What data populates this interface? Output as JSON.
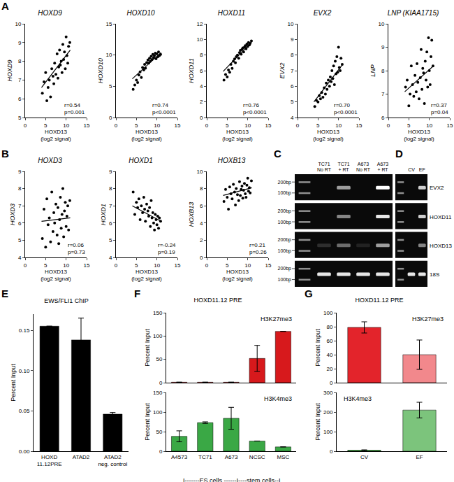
{
  "panel_labels": [
    "A",
    "B",
    "C",
    "D",
    "E",
    "F",
    "G"
  ],
  "chart_data": [
    {
      "type": "scatter",
      "title": "HOXD9",
      "xlabel": "HOXD13\n(log2 signal)",
      "ylabel": "HOXD9",
      "xlim": [
        0,
        15
      ],
      "xticks": [
        0,
        5,
        10,
        15
      ],
      "ylim": [
        5,
        10
      ],
      "yticks": [
        5,
        6,
        7,
        8,
        9,
        10
      ],
      "grid": false,
      "annotations": [
        "r=0.54\np=0.001"
      ],
      "series": [
        {
          "type": "scatter",
          "marker": "circle",
          "color": "#000000",
          "x": [
            4.2,
            4.6,
            5.0,
            5.3,
            5.6,
            5.9,
            6.2,
            6.5,
            6.8,
            7.0,
            7.2,
            7.5,
            7.8,
            8.0,
            8.2,
            8.4,
            8.6,
            8.8,
            9.0,
            9.2,
            9.4,
            9.6,
            9.8,
            10.0,
            10.2,
            10.4,
            10.6,
            10.9
          ],
          "values": [
            6.3,
            6.9,
            7.4,
            5.9,
            6.6,
            7.0,
            6.1,
            7.6,
            7.2,
            6.8,
            7.9,
            7.3,
            8.4,
            7.1,
            7.7,
            8.6,
            7.8,
            8.0,
            7.4,
            8.9,
            8.1,
            8.5,
            7.6,
            9.3,
            8.3,
            7.9,
            8.8,
            9.0
          ]
        },
        {
          "type": "line",
          "line_style": "solid",
          "color": "#000000",
          "x": [
            4,
            11
          ],
          "values": [
            6.6,
            8.6
          ]
        }
      ]
    },
    {
      "type": "scatter",
      "title": "HOXD10",
      "xlabel": "HOXD13\n(log2 signal)",
      "ylabel": "HOXD10",
      "xlim": [
        0,
        15
      ],
      "xticks": [
        0,
        5,
        10,
        15
      ],
      "ylim": [
        0,
        15
      ],
      "yticks": [
        0,
        5,
        10,
        15
      ],
      "grid": false,
      "annotations": [
        "r=0.74\np<0.0001"
      ],
      "series": [
        {
          "type": "scatter",
          "marker": "circle",
          "color": "#000000",
          "x": [
            4.2,
            4.6,
            5.0,
            5.3,
            5.6,
            5.9,
            6.2,
            6.5,
            6.8,
            7.0,
            7.2,
            7.5,
            7.8,
            8.0,
            8.2,
            8.4,
            8.6,
            8.8,
            9.0,
            9.2,
            9.4,
            9.6,
            9.8,
            10.0,
            10.2,
            10.4,
            10.6,
            10.9
          ],
          "values": [
            4.5,
            5.2,
            6.0,
            5.6,
            6.8,
            7.3,
            6.4,
            8.0,
            7.6,
            8.5,
            7.9,
            8.8,
            9.2,
            8.7,
            9.5,
            9.0,
            9.8,
            9.3,
            10.1,
            9.6,
            9.9,
            10.3,
            9.4,
            10.2,
            9.7,
            10.5,
            9.9,
            10.1
          ]
        },
        {
          "type": "line",
          "line_style": "solid",
          "color": "#000000",
          "x": [
            4,
            11
          ],
          "values": [
            6.2,
            10.4
          ]
        }
      ]
    },
    {
      "type": "scatter",
      "title": "HOXD11",
      "xlabel": "HOXD13\n(log2 signal)",
      "ylabel": "HOXD11",
      "xlim": [
        0,
        15
      ],
      "xticks": [
        0,
        5,
        10,
        15
      ],
      "ylim": [
        0,
        12
      ],
      "yticks": [
        0,
        2,
        4,
        6,
        8,
        10,
        12
      ],
      "grid": false,
      "annotations": [
        "r=0.76\np<0.0001"
      ],
      "series": [
        {
          "type": "scatter",
          "marker": "circle",
          "color": "#000000",
          "x": [
            4.2,
            4.6,
            5.0,
            5.3,
            5.6,
            5.9,
            6.2,
            6.5,
            6.8,
            7.0,
            7.2,
            7.5,
            7.8,
            8.0,
            8.2,
            8.4,
            8.6,
            8.8,
            9.0,
            9.2,
            9.4,
            9.6,
            9.8,
            10.0,
            10.2,
            10.4,
            10.6,
            10.9
          ],
          "values": [
            4.8,
            5.5,
            5.2,
            6.1,
            5.8,
            6.8,
            6.3,
            7.2,
            7.5,
            7.0,
            7.8,
            8.0,
            7.6,
            8.3,
            8.6,
            8.1,
            8.7,
            8.9,
            8.4,
            9.0,
            9.2,
            8.8,
            9.4,
            9.1,
            9.6,
            9.3,
            9.5,
            9.8
          ]
        },
        {
          "type": "line",
          "line_style": "solid",
          "color": "#000000",
          "x": [
            4,
            11
          ],
          "values": [
            5.9,
            9.7
          ]
        }
      ]
    },
    {
      "type": "scatter",
      "title": "EVX2",
      "xlabel": "HOXD13\n(log2 signal)",
      "ylabel": "EVX2",
      "xlim": [
        0,
        15
      ],
      "xticks": [
        0,
        5,
        10,
        15
      ],
      "ylim": [
        4,
        10
      ],
      "yticks": [
        4,
        5,
        6,
        7,
        8,
        9,
        10
      ],
      "grid": false,
      "annotations": [
        "r=0.70\np<0.0001"
      ],
      "series": [
        {
          "type": "scatter",
          "marker": "circle",
          "color": "#000000",
          "x": [
            4.2,
            4.6,
            5.0,
            5.3,
            5.6,
            5.9,
            6.2,
            6.5,
            6.8,
            7.0,
            7.2,
            7.5,
            7.8,
            8.0,
            8.2,
            8.4,
            8.6,
            8.8,
            9.0,
            9.2,
            9.4,
            9.6,
            9.8,
            10.0,
            10.2,
            10.4,
            10.6,
            10.9
          ],
          "values": [
            4.7,
            5.1,
            5.0,
            5.4,
            5.2,
            5.6,
            5.3,
            5.9,
            5.5,
            6.2,
            5.8,
            6.4,
            6.0,
            6.6,
            6.3,
            7.0,
            6.5,
            7.3,
            6.1,
            7.6,
            6.8,
            7.9,
            6.9,
            8.5,
            7.2,
            7.0,
            7.8,
            7.4
          ]
        },
        {
          "type": "line",
          "line_style": "solid",
          "color": "#000000",
          "x": [
            4,
            11
          ],
          "values": [
            5.0,
            7.4
          ]
        }
      ]
    },
    {
      "type": "scatter",
      "title": "LNP (KIAA1715)",
      "xlabel": "HOXD13\n(log2 signal)",
      "ylabel": "LNP",
      "xlim": [
        0,
        15
      ],
      "xticks": [
        0,
        5,
        10,
        15
      ],
      "ylim": [
        6,
        10
      ],
      "yticks": [
        6,
        7,
        8,
        9,
        10
      ],
      "grid": false,
      "annotations": [
        "r=0.37\np=0.04"
      ],
      "series": [
        {
          "type": "scatter",
          "marker": "circle",
          "color": "#000000",
          "x": [
            4.2,
            4.6,
            5.0,
            5.3,
            5.6,
            5.9,
            6.2,
            6.5,
            6.8,
            7.0,
            7.2,
            7.5,
            7.8,
            8.0,
            8.2,
            8.4,
            8.6,
            8.8,
            9.0,
            9.2,
            9.4,
            9.6,
            9.8,
            10.0,
            10.2,
            10.4,
            10.6,
            10.9
          ],
          "values": [
            7.3,
            7.6,
            6.5,
            7.0,
            8.2,
            7.4,
            6.9,
            7.8,
            7.1,
            8.3,
            7.5,
            6.8,
            7.7,
            8.9,
            7.2,
            8.1,
            7.9,
            6.6,
            8.4,
            7.6,
            8.8,
            7.3,
            9.4,
            8.0,
            7.4,
            8.6,
            9.3,
            8.2
          ]
        },
        {
          "type": "line",
          "line_style": "solid",
          "color": "#000000",
          "x": [
            4,
            11
          ],
          "values": [
            7.1,
            8.2
          ]
        }
      ]
    },
    {
      "type": "scatter",
      "title": "HOXD3",
      "xlabel": "HOXD13\n(log2 signal)",
      "ylabel": "HOXD3",
      "xlim": [
        0,
        15
      ],
      "xticks": [
        0,
        5,
        10,
        15
      ],
      "ylim": [
        4,
        9
      ],
      "yticks": [
        4,
        5,
        6,
        7,
        8,
        9
      ],
      "grid": false,
      "annotations": [
        "r=0.06\np=0.73"
      ],
      "series": [
        {
          "type": "scatter",
          "marker": "circle",
          "color": "#000000",
          "x": [
            4.2,
            4.6,
            5.0,
            5.3,
            5.6,
            5.9,
            6.2,
            6.5,
            6.8,
            7.0,
            7.2,
            7.5,
            7.8,
            8.0,
            8.2,
            8.4,
            8.6,
            8.8,
            9.0,
            9.2,
            9.4,
            9.6,
            9.8,
            10.0,
            10.2,
            10.4,
            10.6,
            10.9
          ],
          "values": [
            5.1,
            6.8,
            4.6,
            7.4,
            5.9,
            6.3,
            4.9,
            7.8,
            5.5,
            6.6,
            6.0,
            7.1,
            5.3,
            6.9,
            4.8,
            6.2,
            7.5,
            5.7,
            6.5,
            8.0,
            5.2,
            6.7,
            7.2,
            5.8,
            6.4,
            7.0,
            5.6,
            7.3
          ]
        },
        {
          "type": "line",
          "line_style": "solid",
          "color": "#000000",
          "x": [
            4,
            11
          ],
          "values": [
            6.1,
            6.3
          ]
        }
      ]
    },
    {
      "type": "scatter",
      "title": "HOXD1",
      "xlabel": "HOXD13\n(log2 signal)",
      "ylabel": "HOXD1",
      "xlim": [
        0,
        15
      ],
      "xticks": [
        0,
        5,
        10,
        15
      ],
      "ylim": [
        4,
        9
      ],
      "yticks": [
        4,
        5,
        6,
        7,
        8,
        9
      ],
      "grid": false,
      "annotations": [
        "r=-0.24\np=0.19"
      ],
      "series": [
        {
          "type": "scatter",
          "marker": "circle",
          "color": "#000000",
          "x": [
            4.2,
            4.6,
            5.0,
            5.3,
            5.6,
            5.9,
            6.2,
            6.5,
            6.8,
            7.0,
            7.2,
            7.5,
            7.8,
            8.0,
            8.2,
            8.4,
            8.6,
            8.8,
            9.0,
            9.2,
            9.4,
            9.6,
            9.8,
            10.0,
            10.2,
            10.4,
            10.6,
            10.9
          ],
          "values": [
            7.8,
            6.5,
            7.2,
            6.9,
            7.4,
            6.2,
            7.0,
            6.6,
            7.5,
            6.8,
            6.1,
            7.1,
            6.7,
            6.4,
            6.9,
            5.8,
            7.3,
            6.3,
            6.6,
            6.0,
            5.6,
            6.5,
            6.2,
            5.9,
            6.4,
            5.7,
            6.3,
            6.1
          ]
        },
        {
          "type": "line",
          "line_style": "solid",
          "color": "#000000",
          "x": [
            4,
            11
          ],
          "values": [
            7.0,
            6.1
          ]
        }
      ]
    },
    {
      "type": "scatter",
      "title": "HOXB13",
      "xlabel": "HOXD13\n(log2 signal)",
      "ylabel": "HOXB13",
      "xlim": [
        0,
        15
      ],
      "xticks": [
        0,
        5,
        10,
        15
      ],
      "ylim": [
        0,
        10
      ],
      "yticks": [
        0,
        2,
        4,
        6,
        8,
        10
      ],
      "grid": false,
      "annotations": [
        "r=0.21\np=0.26"
      ],
      "series": [
        {
          "type": "scatter",
          "marker": "circle",
          "color": "#000000",
          "x": [
            4.2,
            4.6,
            5.0,
            5.3,
            5.6,
            5.9,
            6.2,
            6.5,
            6.8,
            7.0,
            7.2,
            7.5,
            7.8,
            8.0,
            8.2,
            8.4,
            8.6,
            8.8,
            9.0,
            9.2,
            9.4,
            9.6,
            9.8,
            10.0,
            10.2,
            10.4,
            10.6,
            10.9
          ],
          "values": [
            6.5,
            7.9,
            7.0,
            5.6,
            8.2,
            7.4,
            6.8,
            8.5,
            7.6,
            6.1,
            8.0,
            7.3,
            6.6,
            8.8,
            7.2,
            7.9,
            8.3,
            6.9,
            7.8,
            8.6,
            7.4,
            7.0,
            8.4,
            9.2,
            7.7,
            8.1,
            7.5,
            8.9
          ]
        },
        {
          "type": "line",
          "line_style": "solid",
          "color": "#000000",
          "x": [
            4,
            11
          ],
          "values": [
            7.2,
            8.1
          ]
        }
      ]
    },
    {
      "type": "bar",
      "title": "EWS/FLI1 ChIP",
      "ylabel": "Percent Input",
      "categories": [
        "HOXD\n11.12PRE",
        "ATAD2",
        "ATAD2\nneg. control"
      ],
      "values": [
        0.155,
        0.138,
        0.046
      ],
      "errors": [
        0,
        0.027,
        0.002
      ],
      "color": "#000000",
      "ylim": [
        0,
        0.17
      ],
      "yticks": [
        {
          "value": 0,
          "label": "0.00"
        },
        0.05,
        {
          "value": 0.1,
          "label": "0.10"
        },
        0.15
      ],
      "grid": false
    },
    {
      "type": "bar",
      "title": "HOXD11.12 PRE",
      "ylabel": "Percent Input",
      "annotations": [
        "H3K27me3"
      ],
      "categories": [
        "A4573",
        "TC71",
        "A673",
        "NCSC",
        "MSC"
      ],
      "values": [
        1,
        1,
        1,
        52,
        110
      ],
      "errors": [
        0,
        0,
        0,
        28,
        0
      ],
      "color": "#d7191c",
      "ylim": [
        0,
        150
      ],
      "yticks": [
        0,
        50,
        100,
        150
      ],
      "grid": false,
      "tick_labels": "y"
    },
    {
      "type": "bar",
      "ylabel": "Percent Input",
      "annotations": [
        "H3K4me3",
        "I-------ES cells ------I----stem cells--I"
      ],
      "categories": [
        "A4573",
        "TC71",
        "A673",
        "NCSC",
        "MSC"
      ],
      "values": [
        38,
        73,
        84,
        26,
        11
      ],
      "errors": [
        14,
        2,
        28,
        0,
        0
      ],
      "color": "#3aa845",
      "ylim": [
        0,
        150
      ],
      "yticks": [
        0,
        50,
        100,
        150
      ],
      "grid": false
    },
    {
      "type": "bar",
      "title": "HOXD11.12 PRE",
      "ylabel": "Percent Input",
      "annotations": [
        "H3K27me3"
      ],
      "categories": [
        "CV",
        "EF"
      ],
      "values": [
        79,
        40
      ],
      "errors": [
        8,
        21
      ],
      "colors": [
        "#e3242b",
        "#f2888c"
      ],
      "ylim": [
        0,
        100
      ],
      "yticks": [
        0,
        20,
        40,
        60,
        80,
        100
      ],
      "grid": false,
      "tick_labels": "y"
    },
    {
      "type": "bar",
      "ylabel": "Percent Input",
      "annotations": [
        "H3K4me3"
      ],
      "categories": [
        "CV",
        "EF"
      ],
      "values": [
        5,
        210
      ],
      "errors": [
        2,
        40
      ],
      "colors": [
        "#2ca02c",
        "#7cc47c"
      ],
      "ylim": [
        0,
        300
      ],
      "yticks": [
        0,
        100,
        200,
        300
      ],
      "grid": false
    }
  ],
  "gels": [
    {
      "lanes": [
        "TC71\nNo RT",
        "TC71\n+ RT",
        "A673\nNo RT",
        "A673\n+ RT"
      ],
      "ladder_labels": [
        "200bp",
        "100bp"
      ],
      "bands": [
        [
          0,
          0.6,
          0,
          1
        ],
        [
          0,
          0.5,
          0,
          0.9
        ],
        [
          0.15,
          0.4,
          0.1,
          0.6
        ],
        [
          0.9,
          0.9,
          0.9,
          0.9
        ]
      ]
    },
    {
      "lanes": [
        "CV",
        "EF"
      ],
      "row_labels": [
        "EVX2",
        "HOXD11",
        "HOXD13",
        "18S"
      ],
      "bands": [
        [
          0,
          0.8
        ],
        [
          0,
          0.8
        ],
        [
          0,
          0.5
        ],
        [
          0.9,
          0.9
        ]
      ]
    }
  ]
}
